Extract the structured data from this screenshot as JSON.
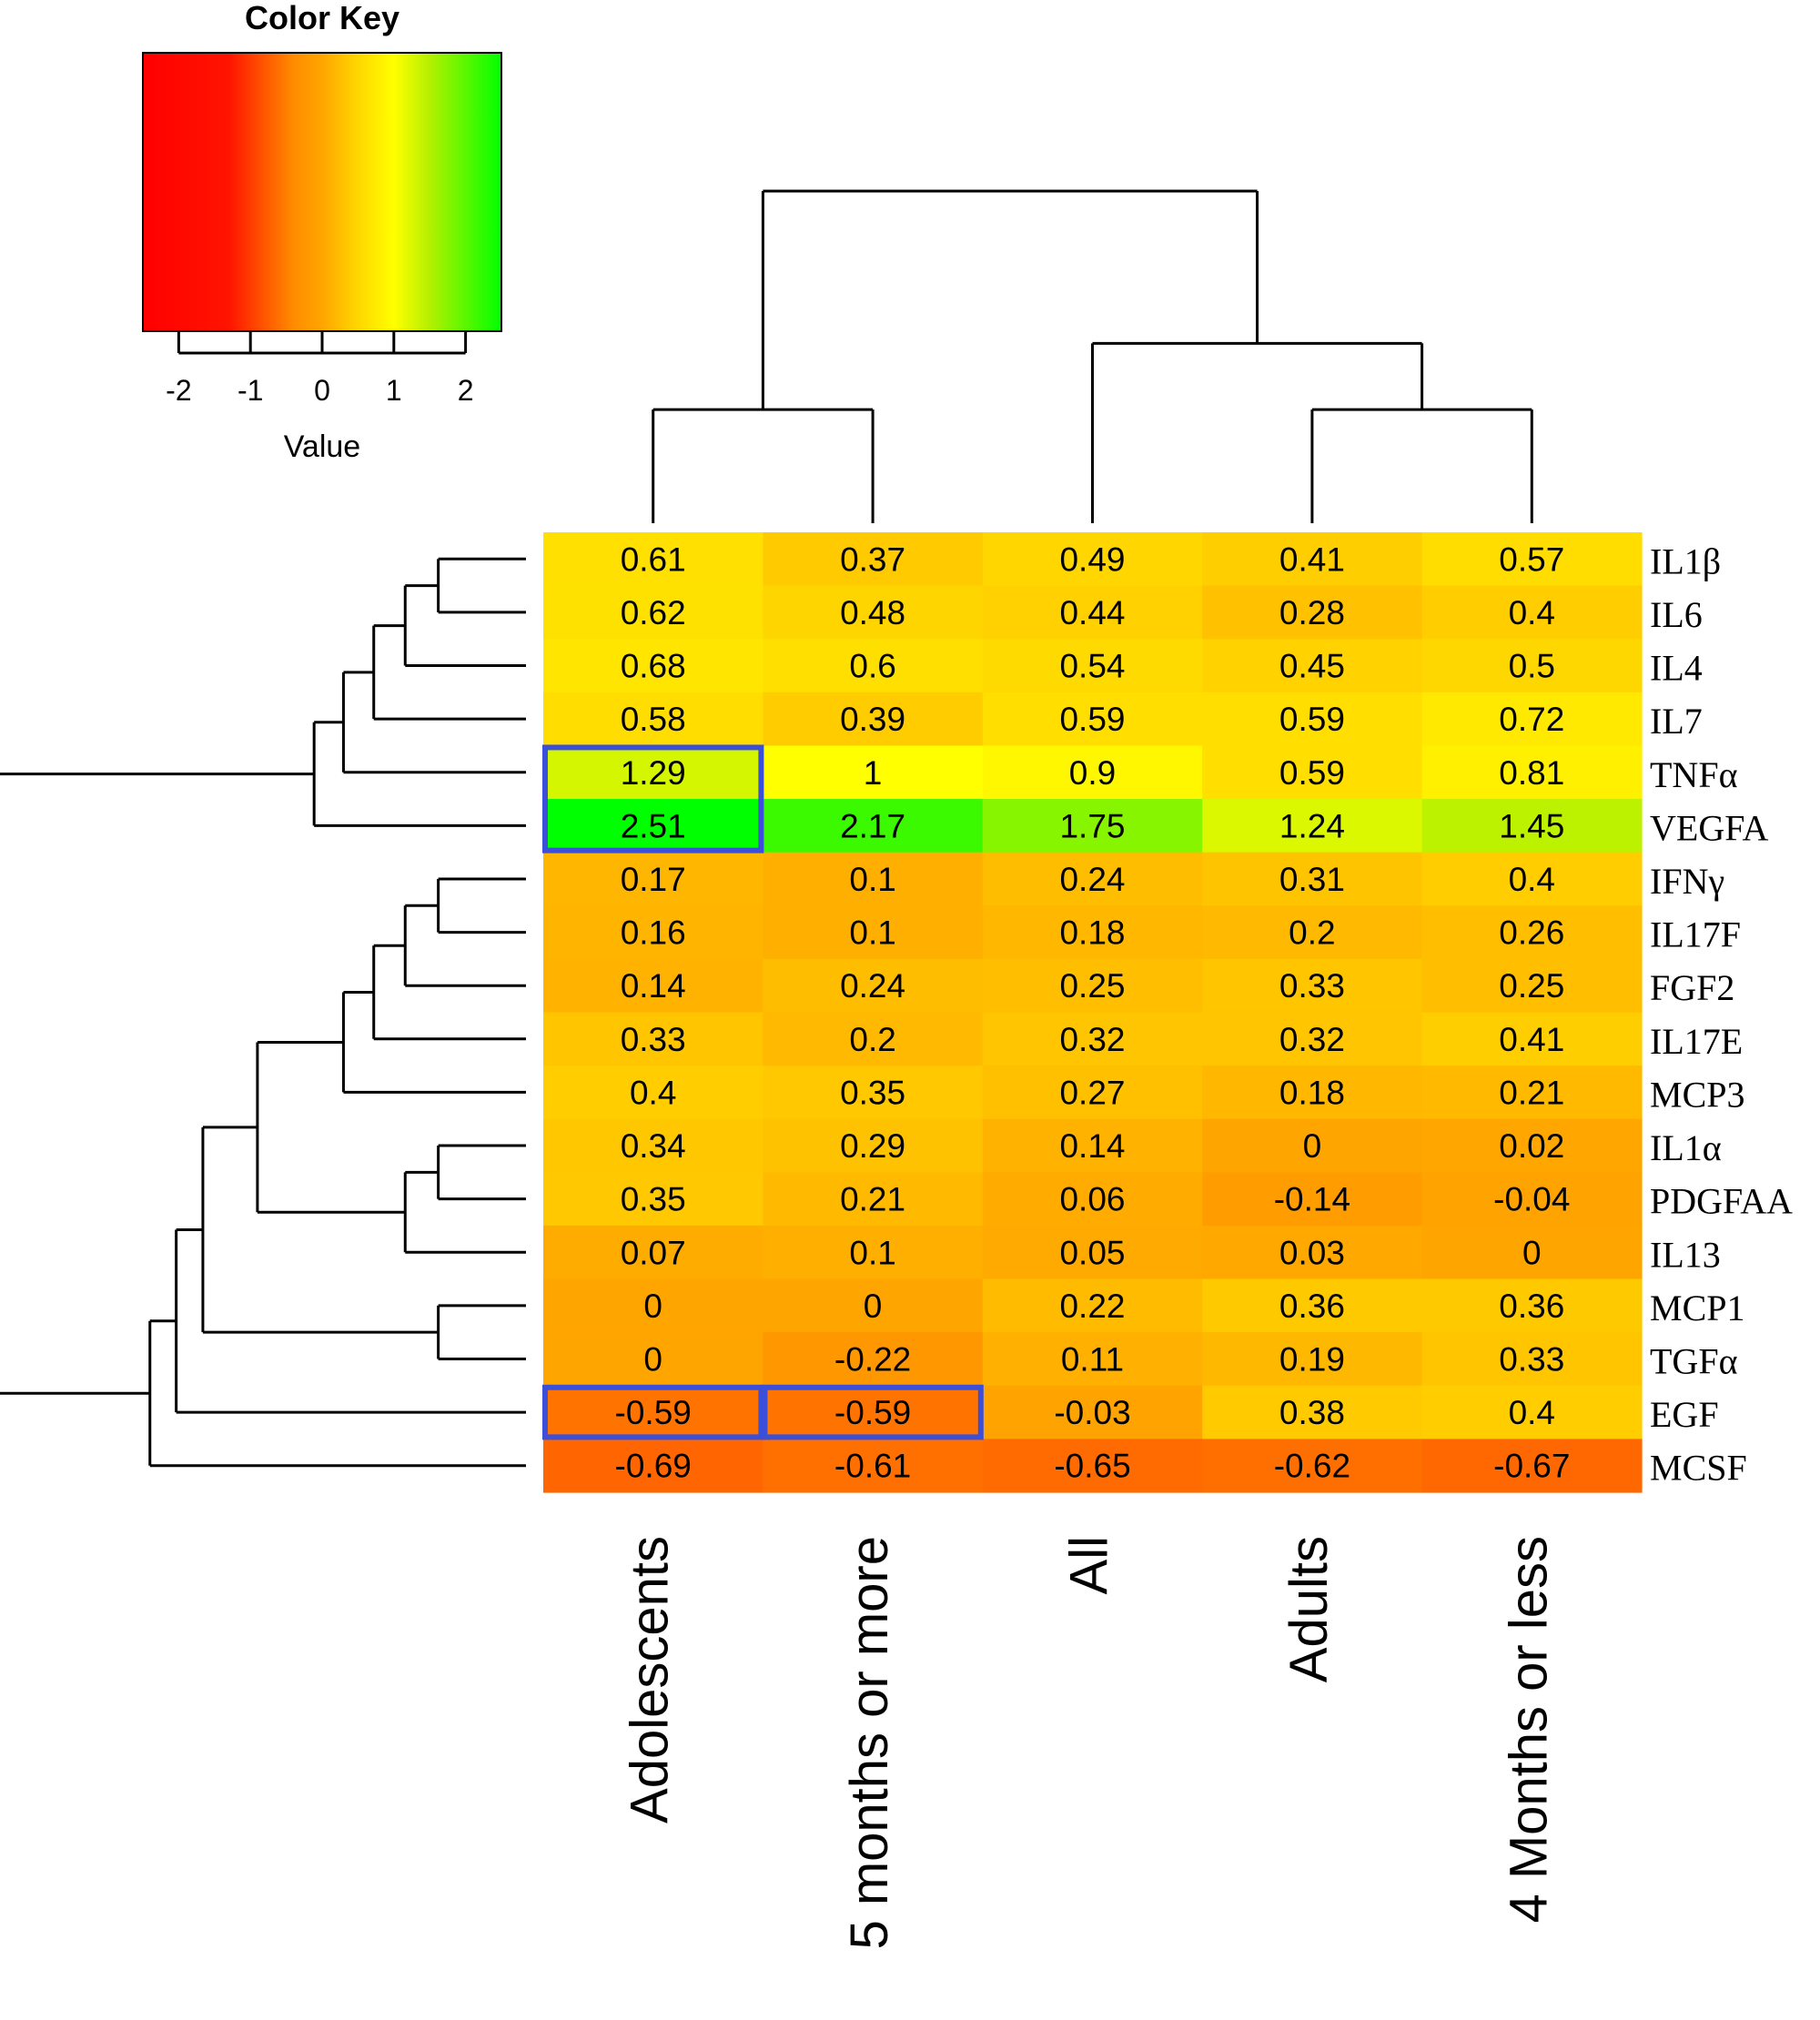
{
  "chart_data": {
    "type": "heatmap",
    "title": "",
    "color_key": {
      "title": "Color Key",
      "label": "Value",
      "ticks": [
        "-2",
        "-1",
        "0",
        "1",
        "2"
      ],
      "tick_values": [
        -2,
        -1,
        0,
        1,
        2
      ],
      "range": [
        -2.5,
        2.5
      ],
      "gradient_colors": [
        "#ff0000",
        "#ff8c00",
        "#ffff00",
        "#00ff00"
      ]
    },
    "columns": [
      "Adolescents",
      "5 months or more",
      "All",
      "Adults",
      "4 Months or less"
    ],
    "rows": [
      "IL1β",
      "IL6",
      "IL4",
      "IL7",
      "TNFα",
      "VEGFA",
      "IFNγ",
      "IL17F",
      "FGF2",
      "IL17E",
      "MCP3",
      "IL1α",
      "PDGFAA",
      "IL13",
      "MCP1",
      "TGFα",
      "EGF",
      "MCSF"
    ],
    "cell_labels": [
      [
        "0.61",
        "0.37",
        "0.49",
        "0.41",
        "0.57"
      ],
      [
        "0.62",
        "0.48",
        "0.44",
        "0.28",
        "0.4"
      ],
      [
        "0.68",
        "0.6",
        "0.54",
        "0.45",
        "0.5"
      ],
      [
        "0.58",
        "0.39",
        "0.59",
        "0.59",
        "0.72"
      ],
      [
        "1.29",
        "1",
        "0.9",
        "0.59",
        "0.81"
      ],
      [
        "2.51",
        "2.17",
        "1.75",
        "1.24",
        "1.45"
      ],
      [
        "0.17",
        "0.1",
        "0.24",
        "0.31",
        "0.4"
      ],
      [
        "0.16",
        "0.1",
        "0.18",
        "0.2",
        "0.26"
      ],
      [
        "0.14",
        "0.24",
        "0.25",
        "0.33",
        "0.25"
      ],
      [
        "0.33",
        "0.2",
        "0.32",
        "0.32",
        "0.41"
      ],
      [
        "0.4",
        "0.35",
        "0.27",
        "0.18",
        "0.21"
      ],
      [
        "0.34",
        "0.29",
        "0.14",
        "0",
        "0.02"
      ],
      [
        "0.35",
        "0.21",
        "0.06",
        "-0.14",
        "-0.04"
      ],
      [
        "0.07",
        "0.1",
        "0.05",
        "0.03",
        "0"
      ],
      [
        "0",
        "0",
        "0.22",
        "0.36",
        "0.36"
      ],
      [
        "0",
        "-0.22",
        "0.11",
        "0.19",
        "0.33"
      ],
      [
        "-0.59",
        "-0.59",
        "-0.03",
        "0.38",
        "0.4"
      ],
      [
        "-0.69",
        "-0.61",
        "-0.65",
        "-0.62",
        "-0.67"
      ]
    ],
    "highlight_boxes": [
      {
        "rows": [
          4,
          5
        ],
        "cols": [
          0,
          0
        ],
        "color": "#3b4fd9"
      },
      {
        "rows": [
          16,
          16
        ],
        "cols": [
          0,
          0
        ],
        "color": "#3b4fd9"
      },
      {
        "rows": [
          16,
          16
        ],
        "cols": [
          1,
          1
        ],
        "color": "#3b4fd9"
      }
    ],
    "row_dendrogram": [
      [
        0,
        1
      ],
      [
        18,
        2
      ],
      [
        19,
        3
      ],
      [
        20,
        4
      ],
      [
        21,
        5
      ],
      [
        6,
        7
      ],
      [
        23,
        8
      ],
      [
        24,
        9
      ],
      [
        25,
        10
      ],
      [
        11,
        12
      ],
      [
        27,
        13
      ],
      [
        26,
        28
      ],
      [
        14,
        15
      ],
      [
        29,
        30
      ],
      [
        31,
        16
      ],
      [
        32,
        17
      ],
      [
        22,
        33
      ]
    ],
    "col_dendrogram": [
      [
        0,
        1
      ],
      [
        3,
        4
      ],
      [
        2,
        6
      ],
      [
        5,
        7
      ]
    ],
    "legend": "top-left color key",
    "grid": false
  }
}
